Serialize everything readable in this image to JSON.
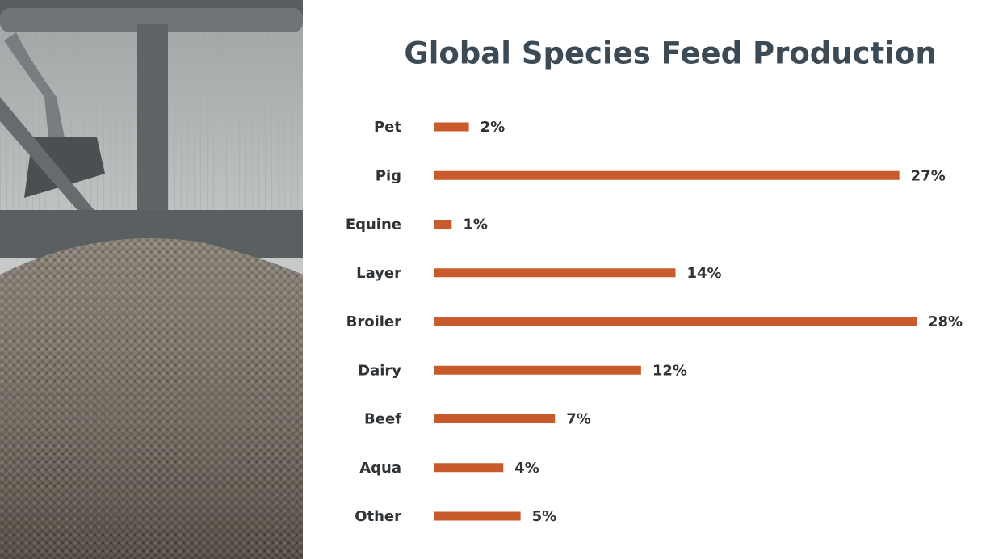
{
  "chart_data": {
    "type": "bar",
    "orientation": "horizontal",
    "title": "Global Species Feed Production",
    "categories": [
      "Pet",
      "Pig",
      "Equine",
      "Layer",
      "Broiler",
      "Dairy",
      "Beef",
      "Aqua",
      "Other"
    ],
    "values": [
      2,
      27,
      1,
      14,
      28,
      12,
      7,
      4,
      5
    ],
    "value_labels": [
      "2%",
      "27%",
      "1%",
      "14%",
      "28%",
      "12%",
      "7%",
      "4%",
      "5%"
    ],
    "color": "#c85a2b"
  }
}
